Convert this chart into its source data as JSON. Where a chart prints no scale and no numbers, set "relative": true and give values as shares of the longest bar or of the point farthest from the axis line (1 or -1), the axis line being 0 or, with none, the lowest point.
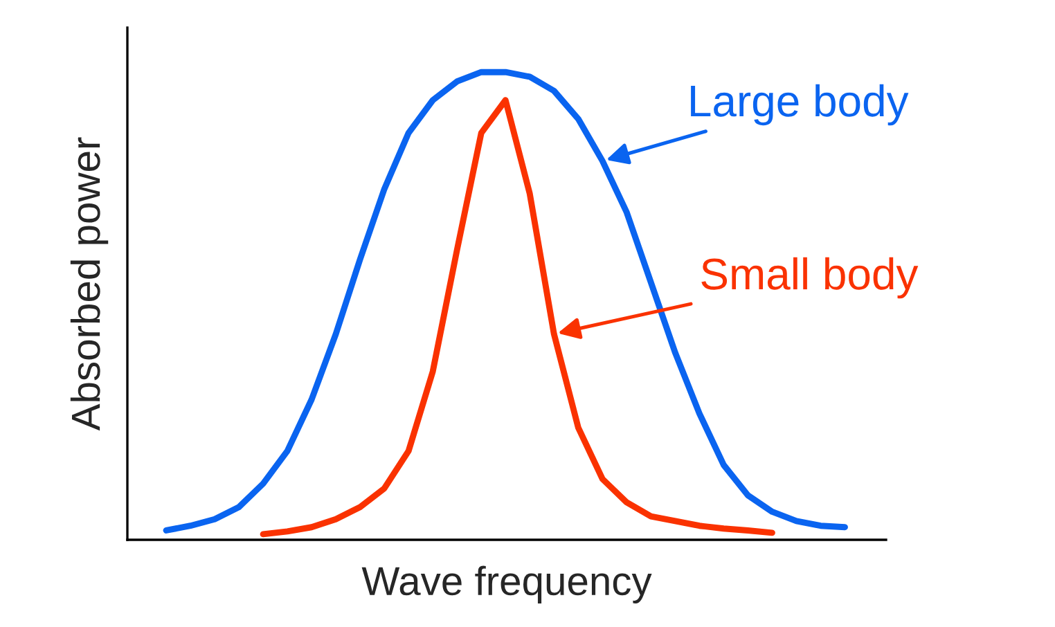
{
  "chart_data": {
    "type": "line",
    "relative": true,
    "xlabel": "Wave frequency",
    "ylabel": "Absorbed power",
    "grid": false,
    "legend": false,
    "marker": "none",
    "line_style": "solid",
    "categories": [
      null,
      null,
      null,
      null,
      null,
      null,
      null,
      null,
      null,
      null,
      null,
      null,
      null,
      null,
      null,
      null,
      null,
      null,
      null,
      null,
      null,
      null,
      null,
      null,
      null,
      null,
      null,
      null,
      null
    ],
    "series": [
      {
        "name": "Large body",
        "color": "#0a64f0",
        "values": [
          0.02,
          0.03,
          0.044,
          0.07,
          0.12,
          0.19,
          0.3,
          0.44,
          0.6,
          0.75,
          0.87,
          0.94,
          0.98,
          1.0,
          1.0,
          0.99,
          0.96,
          0.9,
          0.81,
          0.7,
          0.55,
          0.4,
          0.27,
          0.16,
          0.095,
          0.06,
          0.04,
          0.03,
          0.027
        ]
      },
      {
        "name": "Small body",
        "color": "#fa3200",
        "values": [
          null,
          null,
          null,
          null,
          0.012,
          0.018,
          0.027,
          0.044,
          0.07,
          0.11,
          0.19,
          0.36,
          0.62,
          0.87,
          0.94,
          0.74,
          0.44,
          0.24,
          0.13,
          0.08,
          0.05,
          0.04,
          0.03,
          0.024,
          0.02,
          0.015,
          null,
          null,
          null
        ]
      }
    ]
  }
}
